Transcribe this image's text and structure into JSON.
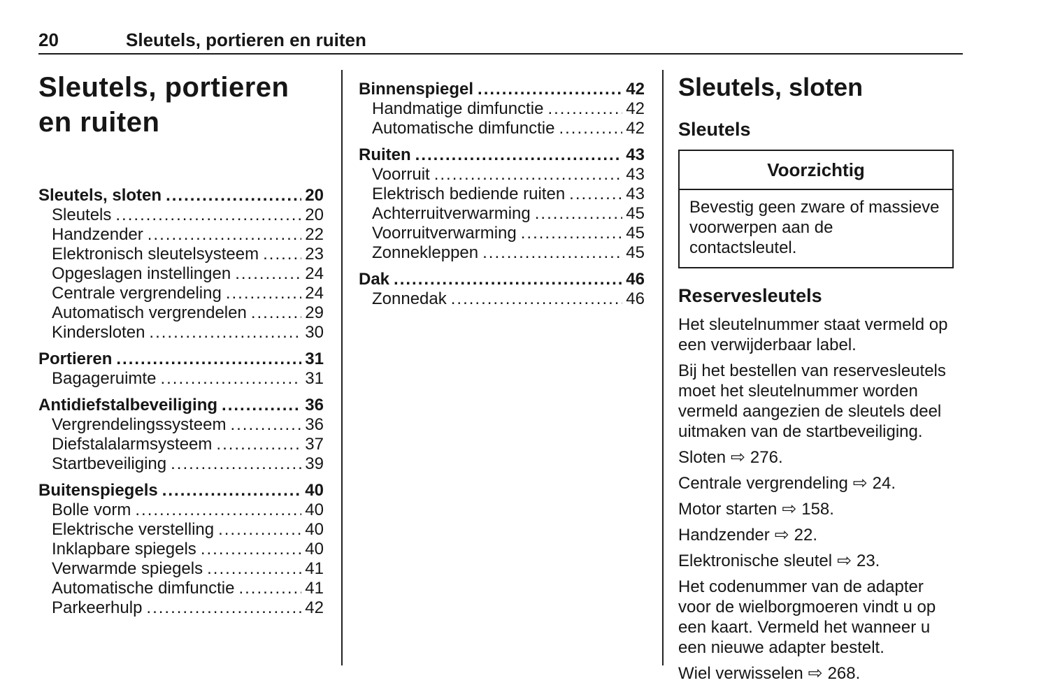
{
  "page": {
    "number": "20",
    "chapter": "Sleutels, portieren en ruiten"
  },
  "title": {
    "line1": "Sleutels, portieren",
    "line2": "en ruiten"
  },
  "toc_left": [
    {
      "label": "Sleutels, sloten",
      "page": "20",
      "bold": true
    },
    {
      "label": "Sleutels",
      "page": "20",
      "indent": true
    },
    {
      "label": "Handzender",
      "page": "22",
      "indent": true
    },
    {
      "label": "Elektronisch sleutelsysteem",
      "page": "23",
      "indent": true
    },
    {
      "label": "Opgeslagen instellingen",
      "page": "24",
      "indent": true
    },
    {
      "label": "Centrale vergrendeling",
      "page": "24",
      "indent": true
    },
    {
      "label": "Automatisch vergrendelen",
      "page": "29",
      "indent": true
    },
    {
      "label": "Kindersloten",
      "page": "30",
      "indent": true
    },
    {
      "label": "Portieren",
      "page": "31",
      "bold": true
    },
    {
      "label": "Bagageruimte",
      "page": "31",
      "indent": true
    },
    {
      "label": "Antidiefstalbeveiliging",
      "page": "36",
      "bold": true
    },
    {
      "label": "Vergrendelingssysteem",
      "page": "36",
      "indent": true
    },
    {
      "label": "Diefstalalarmsysteem",
      "page": "37",
      "indent": true
    },
    {
      "label": "Startbeveiliging",
      "page": "39",
      "indent": true
    },
    {
      "label": "Buitenspiegels",
      "page": "40",
      "bold": true
    },
    {
      "label": "Bolle vorm",
      "page": "40",
      "indent": true
    },
    {
      "label": "Elektrische verstelling",
      "page": "40",
      "indent": true
    },
    {
      "label": "Inklapbare spiegels",
      "page": "40",
      "indent": true
    },
    {
      "label": "Verwarmde spiegels",
      "page": "41",
      "indent": true
    },
    {
      "label": "Automatische dimfunctie",
      "page": "41",
      "indent": true
    },
    {
      "label": "Parkeerhulp",
      "page": "42",
      "indent": true
    }
  ],
  "toc_middle": [
    {
      "label": "Binnenspiegel",
      "page": "42",
      "bold": true
    },
    {
      "label": "Handmatige dimfunctie",
      "page": "42",
      "indent": true
    },
    {
      "label": "Automatische dimfunctie",
      "page": "42",
      "indent": true
    },
    {
      "label": "Ruiten",
      "page": "43",
      "bold": true
    },
    {
      "label": "Voorruit",
      "page": "43",
      "indent": true
    },
    {
      "label": "Elektrisch bediende ruiten",
      "page": "43",
      "indent": true
    },
    {
      "label": "Achterruitverwarming",
      "page": "45",
      "indent": true
    },
    {
      "label": "Voorruitverwarming",
      "page": "45",
      "indent": true
    },
    {
      "label": "Zonnekleppen",
      "page": "45",
      "indent": true
    },
    {
      "label": "Dak",
      "page": "46",
      "bold": true
    },
    {
      "label": "Zonnedak",
      "page": "46",
      "indent": true
    }
  ],
  "section": {
    "heading": "Sleutels, sloten",
    "subheading": "Sleutels",
    "caution": {
      "title": "Voorzichtig",
      "body": "Bevestig geen zware of massieve voorwerpen aan de contactsleutel."
    },
    "subsection_heading": "Reservesleutels",
    "blocks": [
      {
        "type": "p",
        "text": "Het sleutelnummer staat vermeld op een verwijderbaar label."
      },
      {
        "type": "p",
        "text": "Bij het bestellen van reservesleutels moet het sleutelnummer worden vermeld aangezien de sleutels deel uitmaken van de startbeveiliging."
      },
      {
        "type": "ref",
        "label": "Sloten",
        "page": "276"
      },
      {
        "type": "ref",
        "label": "Centrale vergrendeling",
        "page": "24"
      },
      {
        "type": "ref",
        "label": "Motor starten",
        "page": "158"
      },
      {
        "type": "ref",
        "label": "Handzender",
        "page": "22"
      },
      {
        "type": "ref",
        "label": "Elektronische sleutel",
        "page": "23"
      },
      {
        "type": "p",
        "text": "Het codenummer van de adapter voor de wielborgmoeren vindt u op een kaart. Vermeld het wanneer u een nieuwe adapter bestelt."
      },
      {
        "type": "ref",
        "label": "Wiel verwisselen",
        "page": "268"
      }
    ]
  },
  "icons": {
    "page_ref_arrow": "⇨"
  },
  "colors": {
    "text": "#161616",
    "rule": "#1a1a1a",
    "background": "#ffffff"
  }
}
